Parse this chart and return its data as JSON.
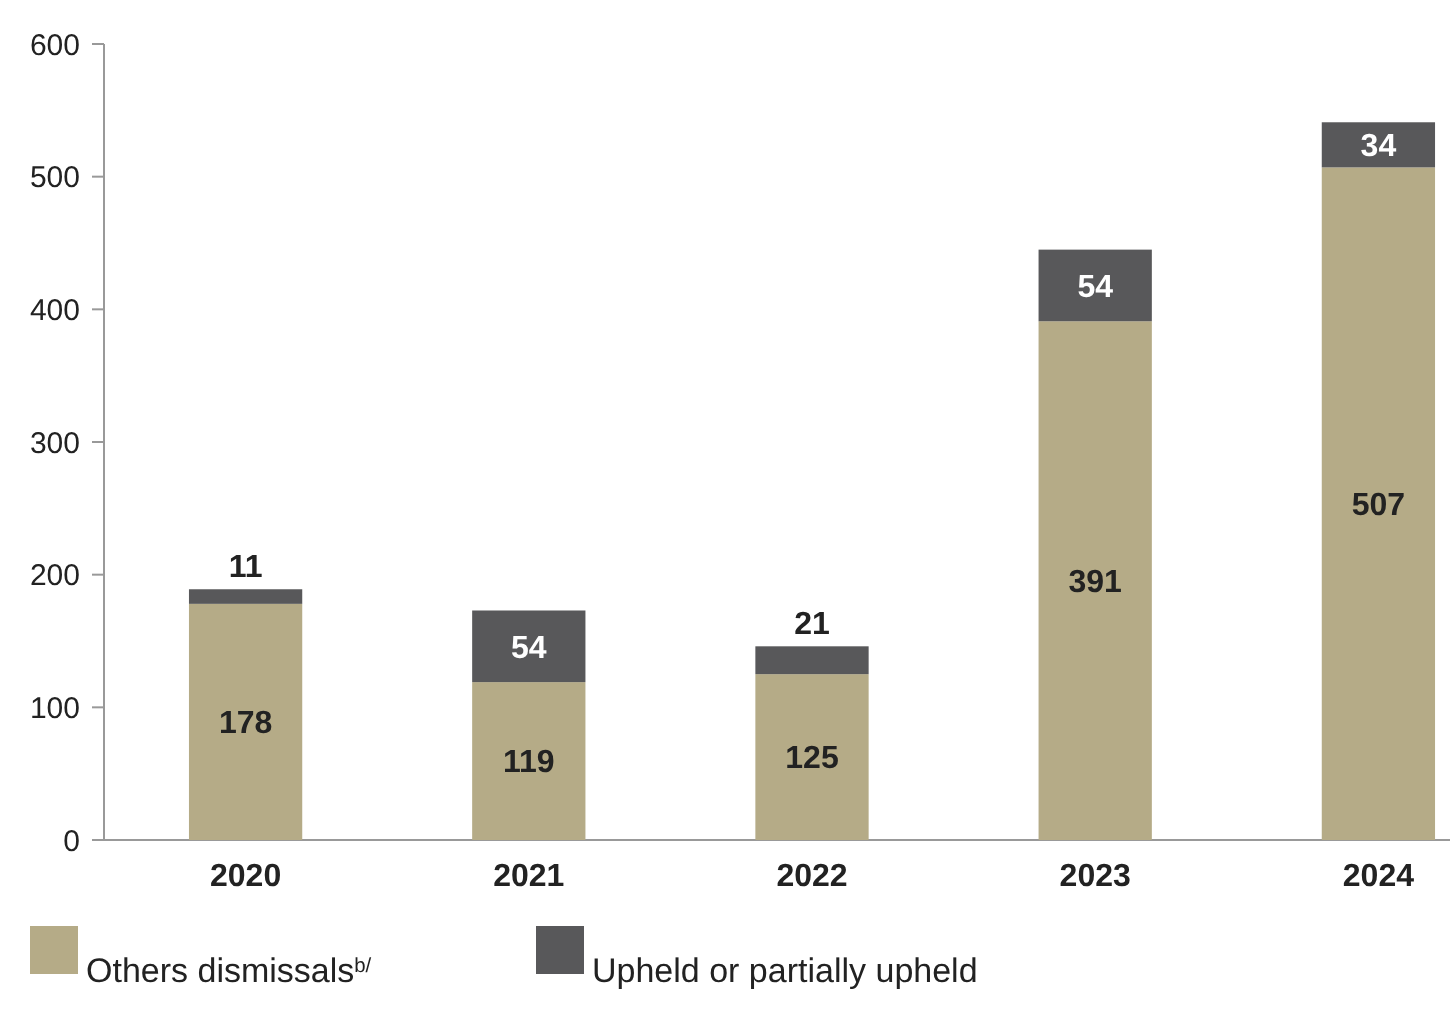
{
  "chart_data": {
    "type": "bar",
    "stacked": true,
    "categories": [
      "2020",
      "2021",
      "2022",
      "2023",
      "2024"
    ],
    "series": [
      {
        "name": "Others dismissals$^{b/}$",
        "color": "#b5ab87",
        "values": [
          178,
          119,
          125,
          391,
          507
        ]
      },
      {
        "name": "Upheld or partially upheld",
        "color": "#58585a",
        "values": [
          11,
          54,
          21,
          54,
          34
        ]
      }
    ],
    "ylim": [
      0,
      600
    ],
    "yticks": [
      0,
      100,
      200,
      300,
      400,
      500,
      600
    ],
    "data_labels": true,
    "legend": "bottom",
    "grid": false
  }
}
